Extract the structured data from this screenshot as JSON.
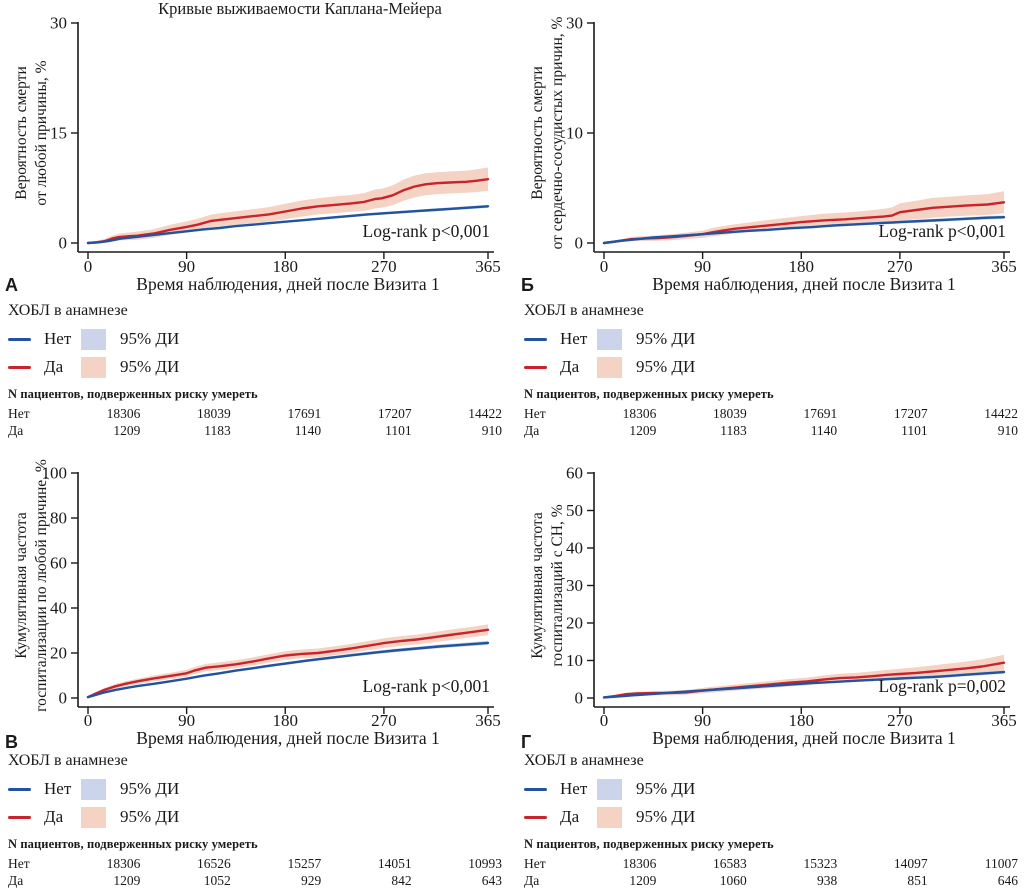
{
  "colors": {
    "no_line": "#21539e",
    "yes_line": "#c8242c",
    "no_band": "#cbd4ea",
    "yes_band": "#f4d2c4",
    "axis": "#1a1a1a"
  },
  "legend": {
    "group_title": "ХОБЛ в анамнезе",
    "no_label": "Нет",
    "yes_label": "Да",
    "ci_label": "95% ДИ"
  },
  "chart_data": [
    {
      "type": "line",
      "letter": "А",
      "title": "Кривые выживаемости Каплана-Мейера",
      "ylabel_lines": [
        "Вероятность смерти",
        "от любой причины, %"
      ],
      "xlabel": "Время наблюдения, дней после Визита 1",
      "annotation": "Log-rank p<0,001",
      "xlim": [
        0,
        365
      ],
      "xticks": [
        0,
        90,
        180,
        270,
        365
      ],
      "yticks": [
        {
          "v": 0,
          "label": "0",
          "f": 0
        },
        {
          "v": 15,
          "label": "15",
          "f": 0.5
        },
        {
          "v": 30,
          "label": "30",
          "f": 1
        }
      ],
      "series": [
        {
          "name": "Да",
          "role": "yes",
          "x": [
            0,
            8,
            15,
            22,
            28,
            35,
            45,
            60,
            75,
            90,
            100,
            112,
            120,
            135,
            150,
            165,
            180,
            195,
            210,
            225,
            240,
            252,
            262,
            268,
            278,
            288,
            298,
            308,
            318,
            330,
            345,
            355,
            365
          ],
          "y": [
            0,
            0.1,
            0.25,
            0.6,
            0.8,
            0.9,
            1.0,
            1.3,
            1.8,
            2.2,
            2.5,
            3.0,
            3.15,
            3.4,
            3.65,
            3.9,
            4.3,
            4.7,
            5.0,
            5.2,
            5.4,
            5.6,
            6.0,
            6.1,
            6.5,
            7.2,
            7.7,
            8.0,
            8.15,
            8.25,
            8.35,
            8.5,
            8.7
          ],
          "ci": [
            0.1,
            0.2,
            0.3,
            0.4,
            0.45,
            0.5,
            0.55,
            0.6,
            0.7,
            0.75,
            0.8,
            0.85,
            0.9,
            0.92,
            0.95,
            1.0,
            1.05,
            1.1,
            1.1,
            1.15,
            1.15,
            1.2,
            1.3,
            1.3,
            1.35,
            1.45,
            1.5,
            1.5,
            1.5,
            1.5,
            1.5,
            1.55,
            1.6
          ]
        },
        {
          "name": "Нет",
          "role": "no",
          "x": [
            0,
            10,
            20,
            30,
            45,
            60,
            75,
            90,
            105,
            120,
            135,
            150,
            165,
            180,
            195,
            210,
            225,
            240,
            255,
            270,
            285,
            300,
            315,
            330,
            345,
            365
          ],
          "y": [
            0,
            0.1,
            0.3,
            0.6,
            0.85,
            1.1,
            1.35,
            1.6,
            1.85,
            2.05,
            2.3,
            2.5,
            2.7,
            2.9,
            3.1,
            3.3,
            3.5,
            3.7,
            3.9,
            4.05,
            4.2,
            4.35,
            4.5,
            4.65,
            4.8,
            5.0
          ],
          "ci": [
            0.05,
            0.06,
            0.07,
            0.08,
            0.09,
            0.1,
            0.11,
            0.12,
            0.13,
            0.13,
            0.14,
            0.14,
            0.15,
            0.15,
            0.16,
            0.16,
            0.17,
            0.17,
            0.18,
            0.18,
            0.19,
            0.19,
            0.2,
            0.2,
            0.21,
            0.22
          ]
        }
      ],
      "risk_table": {
        "header": "N пациентов, подверженных риску умереть",
        "rows": [
          {
            "label": "Нет",
            "values": [
              "18306",
              "18039",
              "17691",
              "17207",
              "14422"
            ]
          },
          {
            "label": "Да",
            "values": [
              "1209",
              "1183",
              "1140",
              "1101",
              "910"
            ]
          }
        ]
      }
    },
    {
      "type": "line",
      "letter": "Б",
      "title": "",
      "ylabel_lines": [
        "Вероятность смерти",
        "от сердечно-сосудистых причин, %"
      ],
      "xlabel": "Время наблюдения, дней после Визита 1",
      "annotation": "Log-rank p<0,001",
      "xlim": [
        0,
        365
      ],
      "xticks": [
        0,
        90,
        180,
        270,
        365
      ],
      "yticks": [
        {
          "v": 0,
          "label": "0",
          "f": 0
        },
        {
          "v": 10,
          "label": "10",
          "f": 0.5
        },
        {
          "v": 30,
          "label": "30",
          "f": 1
        }
      ],
      "series": [
        {
          "name": "Да",
          "role": "yes",
          "x": [
            0,
            8,
            15,
            25,
            35,
            50,
            65,
            80,
            90,
            100,
            110,
            120,
            135,
            150,
            165,
            180,
            200,
            220,
            240,
            255,
            263,
            270,
            285,
            300,
            315,
            330,
            350,
            365
          ],
          "y": [
            0,
            0.1,
            0.2,
            0.35,
            0.4,
            0.45,
            0.55,
            0.7,
            0.8,
            1.0,
            1.15,
            1.3,
            1.45,
            1.6,
            1.75,
            1.9,
            2.05,
            2.15,
            2.3,
            2.4,
            2.5,
            2.8,
            3.0,
            3.2,
            3.3,
            3.4,
            3.5,
            3.7
          ],
          "ci": [
            0.05,
            0.1,
            0.15,
            0.2,
            0.22,
            0.25,
            0.28,
            0.3,
            0.33,
            0.38,
            0.4,
            0.42,
            0.45,
            0.5,
            0.52,
            0.55,
            0.6,
            0.62,
            0.65,
            0.7,
            0.75,
            0.8,
            0.85,
            0.9,
            0.9,
            0.92,
            0.95,
            1.0
          ]
        },
        {
          "name": "Нет",
          "role": "no",
          "x": [
            0,
            15,
            30,
            45,
            60,
            75,
            90,
            110,
            130,
            150,
            170,
            190,
            210,
            230,
            250,
            270,
            290,
            310,
            330,
            350,
            365
          ],
          "y": [
            0,
            0.2,
            0.35,
            0.5,
            0.6,
            0.7,
            0.8,
            0.95,
            1.1,
            1.2,
            1.35,
            1.45,
            1.6,
            1.7,
            1.8,
            1.9,
            2.0,
            2.1,
            2.2,
            2.3,
            2.35
          ],
          "ci": [
            0.03,
            0.05,
            0.06,
            0.07,
            0.08,
            0.08,
            0.09,
            0.1,
            0.1,
            0.11,
            0.11,
            0.12,
            0.12,
            0.13,
            0.13,
            0.14,
            0.14,
            0.15,
            0.15,
            0.16,
            0.16
          ]
        }
      ],
      "risk_table": {
        "header": "N пациентов, подверженных риску умереть",
        "rows": [
          {
            "label": "Нет",
            "values": [
              "18306",
              "18039",
              "17691",
              "17207",
              "14422"
            ]
          },
          {
            "label": "Да",
            "values": [
              "1209",
              "1183",
              "1140",
              "1101",
              "910"
            ]
          }
        ]
      }
    },
    {
      "type": "line",
      "letter": "В",
      "title": "",
      "ylabel_lines": [
        "Кумулятивная частота",
        "госпитализации по любой причине, %"
      ],
      "xlabel": "Время наблюдения, дней после Визита 1",
      "annotation": "Log-rank p<0,001",
      "xlim": [
        0,
        365
      ],
      "xticks": [
        0,
        90,
        180,
        270,
        365
      ],
      "yticks": [
        {
          "v": 0,
          "label": "0",
          "f": 0
        },
        {
          "v": 20,
          "label": "20",
          "f": 0.2
        },
        {
          "v": 40,
          "label": "40",
          "f": 0.4
        },
        {
          "v": 60,
          "label": "60",
          "f": 0.6
        },
        {
          "v": 80,
          "label": "80",
          "f": 0.8
        },
        {
          "v": 100,
          "label": "100",
          "f": 1
        }
      ],
      "series": [
        {
          "name": "Да",
          "role": "yes",
          "x": [
            0,
            8,
            15,
            25,
            35,
            45,
            60,
            75,
            90,
            98,
            108,
            120,
            135,
            150,
            165,
            180,
            195,
            210,
            225,
            240,
            255,
            270,
            285,
            300,
            315,
            330,
            345,
            365
          ],
          "y": [
            0.4,
            2.2,
            3.6,
            5.2,
            6.4,
            7.4,
            8.7,
            9.8,
            11,
            12.3,
            13.5,
            14.1,
            15,
            16.2,
            17.6,
            18.9,
            19.6,
            20,
            21,
            22,
            23.2,
            24.4,
            25.3,
            26,
            27,
            28,
            29,
            30.3
          ],
          "ci": [
            0.3,
            0.6,
            0.8,
            1,
            1.1,
            1.2,
            1.3,
            1.4,
            1.5,
            1.6,
            1.65,
            1.7,
            1.75,
            1.8,
            1.85,
            1.9,
            1.95,
            2,
            2,
            2.05,
            2.1,
            2.15,
            2.2,
            2.2,
            2.25,
            2.3,
            2.3,
            2.4
          ]
        },
        {
          "name": "Нет",
          "role": "no",
          "x": [
            0,
            8,
            15,
            25,
            35,
            45,
            60,
            75,
            90,
            105,
            120,
            135,
            150,
            165,
            180,
            200,
            220,
            240,
            260,
            280,
            300,
            320,
            340,
            365
          ],
          "y": [
            0.4,
            1.5,
            2.5,
            3.6,
            4.5,
            5.3,
            6.3,
            7.4,
            8.6,
            9.9,
            11,
            12.2,
            13.2,
            14.3,
            15.3,
            16.6,
            17.8,
            19,
            20.1,
            21.1,
            22,
            22.9,
            23.6,
            24.5
          ],
          "ci": [
            0.2,
            0.23,
            0.26,
            0.29,
            0.32,
            0.35,
            0.38,
            0.41,
            0.44,
            0.47,
            0.5,
            0.53,
            0.56,
            0.59,
            0.62,
            0.65,
            0.68,
            0.71,
            0.74,
            0.77,
            0.8,
            0.83,
            0.86,
            0.9
          ]
        }
      ],
      "risk_table": {
        "header": "N пациентов, подверженных риску умереть",
        "rows": [
          {
            "label": "Нет",
            "values": [
              "18306",
              "16526",
              "15257",
              "14051",
              "10993"
            ]
          },
          {
            "label": "Да",
            "values": [
              "1209",
              "1052",
              "929",
              "842",
              "643"
            ]
          }
        ]
      }
    },
    {
      "type": "line",
      "letter": "Г",
      "title": "",
      "ylabel_lines": [
        "Кумулятивная частота",
        "госпитализаций с СН, %"
      ],
      "xlabel": "Время наблюдения, дней после Визита 1",
      "annotation": "Log-rank p=0,002",
      "xlim": [
        0,
        365
      ],
      "xticks": [
        0,
        90,
        180,
        270,
        365
      ],
      "yticks": [
        {
          "v": 0,
          "label": "0",
          "f": 0
        },
        {
          "v": 10,
          "label": "10",
          "f": 0.1667
        },
        {
          "v": 20,
          "label": "20",
          "f": 0.3333
        },
        {
          "v": 30,
          "label": "30",
          "f": 0.5
        },
        {
          "v": 40,
          "label": "40",
          "f": 0.6667
        },
        {
          "v": 50,
          "label": "50",
          "f": 0.8333
        },
        {
          "v": 60,
          "label": "60",
          "f": 1
        }
      ],
      "series": [
        {
          "name": "Да",
          "role": "yes",
          "x": [
            0,
            10,
            20,
            30,
            45,
            60,
            75,
            85,
            95,
            110,
            125,
            140,
            155,
            170,
            185,
            200,
            215,
            230,
            245,
            260,
            270,
            285,
            300,
            315,
            330,
            345,
            365
          ],
          "y": [
            0.15,
            0.5,
            1.0,
            1.2,
            1.3,
            1.35,
            1.5,
            1.8,
            2.1,
            2.5,
            2.9,
            3.3,
            3.7,
            4.1,
            4.4,
            4.9,
            5.3,
            5.5,
            5.8,
            6.2,
            6.4,
            6.7,
            7.1,
            7.5,
            7.9,
            8.4,
            9.4
          ],
          "ci": [
            0.1,
            0.25,
            0.4,
            0.5,
            0.55,
            0.6,
            0.65,
            0.7,
            0.75,
            0.8,
            0.85,
            0.9,
            0.95,
            1.0,
            1.05,
            1.1,
            1.15,
            1.2,
            1.3,
            1.35,
            1.4,
            1.5,
            1.6,
            1.7,
            1.8,
            1.9,
            2.1
          ]
        },
        {
          "name": "Нет",
          "role": "no",
          "x": [
            0,
            15,
            30,
            45,
            60,
            80,
            90,
            110,
            130,
            150,
            170,
            190,
            210,
            230,
            250,
            270,
            285,
            300,
            315,
            330,
            350,
            365
          ],
          "y": [
            0.15,
            0.45,
            0.8,
            1.1,
            1.4,
            1.8,
            2.0,
            2.4,
            2.8,
            3.2,
            3.6,
            4.0,
            4.3,
            4.6,
            4.9,
            5.2,
            5.4,
            5.6,
            5.9,
            6.2,
            6.6,
            6.9
          ],
          "ci": [
            0.05,
            0.07,
            0.09,
            0.11,
            0.13,
            0.15,
            0.17,
            0.19,
            0.21,
            0.23,
            0.25,
            0.27,
            0.29,
            0.31,
            0.33,
            0.35,
            0.36,
            0.38,
            0.4,
            0.41,
            0.43,
            0.45
          ]
        }
      ],
      "risk_table": {
        "header": "N пациентов, подверженных риску умереть",
        "rows": [
          {
            "label": "Нет",
            "values": [
              "18306",
              "16583",
              "15323",
              "14097",
              "11007"
            ]
          },
          {
            "label": "Да",
            "values": [
              "1209",
              "1060",
              "938",
              "851",
              "646"
            ]
          }
        ]
      }
    }
  ]
}
